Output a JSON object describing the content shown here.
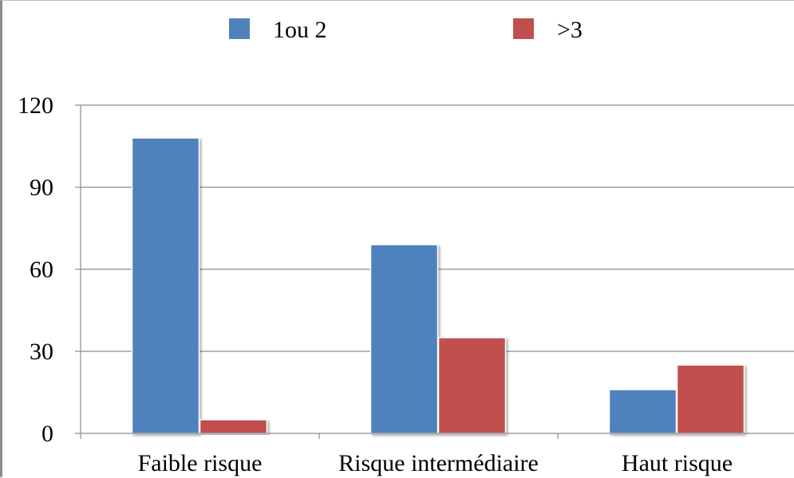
{
  "chart_data": {
    "type": "bar",
    "title": "",
    "xlabel": "",
    "ylabel": "",
    "categories": [
      "Faible risque",
      "Risque intermédiaire",
      "Haut risque"
    ],
    "series": [
      {
        "name": "1ou 2",
        "color": "#4F81BD",
        "values": [
          108,
          69,
          16
        ]
      },
      {
        "name": ">3",
        "color": "#C0504D",
        "values": [
          5,
          35,
          25
        ]
      }
    ],
    "ylim": [
      0,
      120
    ],
    "yticks": [
      0,
      30,
      60,
      90,
      120
    ],
    "ytick_labels": [
      "0",
      "30",
      "60",
      "90",
      "120"
    ],
    "grid": true,
    "legend_position": "top"
  }
}
